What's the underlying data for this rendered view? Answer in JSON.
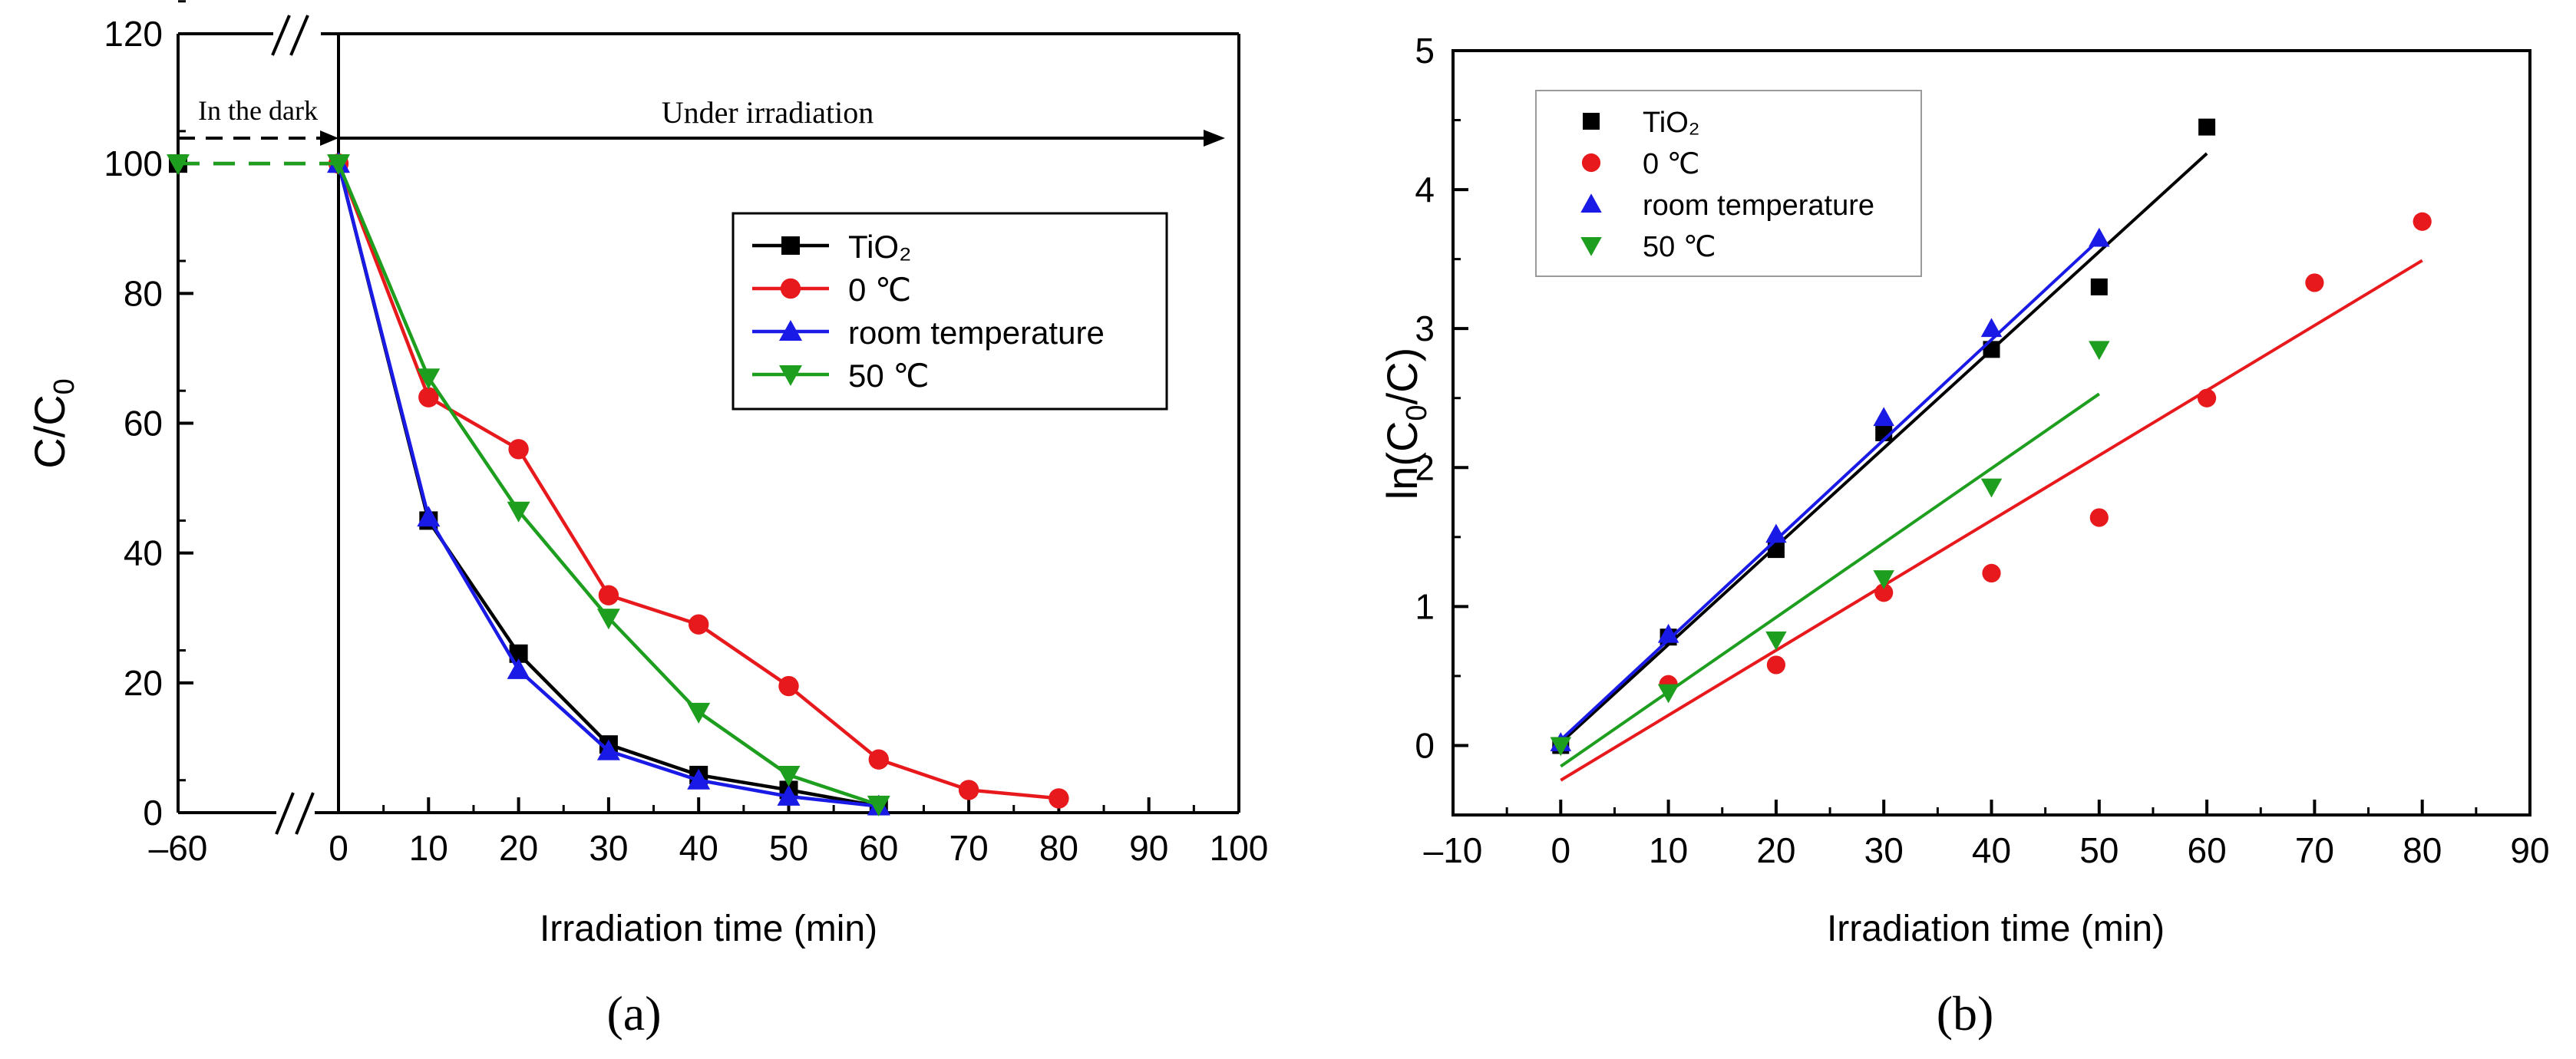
{
  "chart_data": [
    {
      "panel": "a",
      "panel_label": "(a)",
      "type": "line",
      "xlabel": "Irradiation time (min)",
      "ylabel": "C/C0",
      "xlim": [
        -60,
        100
      ],
      "ylim": [
        0,
        120
      ],
      "axis_break": true,
      "xticks": [
        {
          "value": -60,
          "label": "–60"
        },
        {
          "value": 0,
          "label": "0"
        },
        {
          "value": 10,
          "label": "10"
        },
        {
          "value": 20,
          "label": "20"
        },
        {
          "value": 30,
          "label": "30"
        },
        {
          "value": 40,
          "label": "40"
        },
        {
          "value": 50,
          "label": "50"
        },
        {
          "value": 60,
          "label": "60"
        },
        {
          "value": 70,
          "label": "70"
        },
        {
          "value": 80,
          "label": "80"
        },
        {
          "value": 90,
          "label": "90"
        },
        {
          "value": 100,
          "label": "100"
        }
      ],
      "yticks": [
        0,
        20,
        40,
        60,
        80,
        100,
        120
      ],
      "annotations": {
        "dark": "In the dark",
        "irradiation": "Under irradiation"
      },
      "legend_position": "upper-right",
      "series": [
        {
          "name": "TiO₂",
          "color": "#000000",
          "marker": "square",
          "x": [
            -60,
            0,
            10,
            20,
            30,
            40,
            50,
            60
          ],
          "y": [
            100,
            100,
            45,
            24.5,
            10.5,
            5.8,
            3.5,
            1
          ]
        },
        {
          "name": "0 ℃",
          "color": "#e8191c",
          "marker": "circle",
          "x": [
            0,
            10,
            20,
            30,
            40,
            50,
            60,
            70,
            80
          ],
          "y": [
            100,
            64,
            56,
            33.5,
            29,
            19.5,
            8.2,
            3.5,
            2.2
          ]
        },
        {
          "name": "room temperature",
          "color": "#1a1ae6",
          "marker": "triangle-up",
          "x": [
            0,
            10,
            20,
            30,
            40,
            50,
            60
          ],
          "y": [
            100,
            45.5,
            22,
            9.5,
            5,
            2.5,
            1
          ]
        },
        {
          "name": "50 ℃",
          "color": "#1e9e1e",
          "marker": "triangle-down",
          "x": [
            -60,
            0,
            10,
            20,
            30,
            40,
            50,
            60
          ],
          "y": [
            100,
            100,
            67,
            46.5,
            30,
            15.5,
            5.8,
            1.2
          ]
        }
      ]
    },
    {
      "panel": "b",
      "panel_label": "(b)",
      "type": "scatter",
      "xlabel": "Irradiation time (min)",
      "ylabel": "ln(C0/C)",
      "xlim": [
        -10,
        90
      ],
      "ylim": [
        -0.5,
        5
      ],
      "xticks": [
        {
          "value": -10,
          "label": "–10"
        },
        {
          "value": 0,
          "label": "0"
        },
        {
          "value": 10,
          "label": "10"
        },
        {
          "value": 20,
          "label": "20"
        },
        {
          "value": 30,
          "label": "30"
        },
        {
          "value": 40,
          "label": "40"
        },
        {
          "value": 50,
          "label": "50"
        },
        {
          "value": 60,
          "label": "60"
        },
        {
          "value": 70,
          "label": "70"
        },
        {
          "value": 80,
          "label": "80"
        },
        {
          "value": 90,
          "label": "90"
        }
      ],
      "yticks": [
        0,
        1,
        2,
        3,
        4,
        5
      ],
      "legend_position": "upper-left",
      "series": [
        {
          "name": "TiO₂",
          "color": "#000000",
          "marker": "square",
          "x": [
            0,
            10,
            20,
            30,
            40,
            50,
            60
          ],
          "y": [
            0,
            0.78,
            1.41,
            2.25,
            2.85,
            3.3,
            4.45
          ],
          "fit": {
            "x": [
              0,
              60
            ],
            "y": [
              0.02,
              4.26
            ]
          }
        },
        {
          "name": "0 ℃",
          "color": "#e8191c",
          "marker": "circle",
          "x": [
            10,
            20,
            30,
            40,
            50,
            60,
            70,
            80
          ],
          "y": [
            0.44,
            0.58,
            1.1,
            1.24,
            1.64,
            2.5,
            3.33,
            3.77
          ],
          "fit": {
            "x": [
              0,
              80
            ],
            "y": [
              -0.25,
              3.49
            ]
          }
        },
        {
          "name": "room temperature",
          "color": "#1a1ae6",
          "marker": "triangle-up",
          "x": [
            0,
            10,
            20,
            30,
            40,
            50
          ],
          "y": [
            0.02,
            0.8,
            1.52,
            2.36,
            3.0,
            3.65
          ],
          "fit": {
            "x": [
              0,
              50
            ],
            "y": [
              0.04,
              3.64
            ]
          }
        },
        {
          "name": "50 ℃",
          "color": "#1e9e1e",
          "marker": "triangle-down",
          "x": [
            0,
            10,
            20,
            30,
            40,
            50
          ],
          "y": [
            0,
            0.38,
            0.76,
            1.2,
            1.86,
            2.85
          ],
          "fit": {
            "x": [
              0,
              50
            ],
            "y": [
              -0.15,
              2.53
            ]
          }
        }
      ]
    }
  ]
}
